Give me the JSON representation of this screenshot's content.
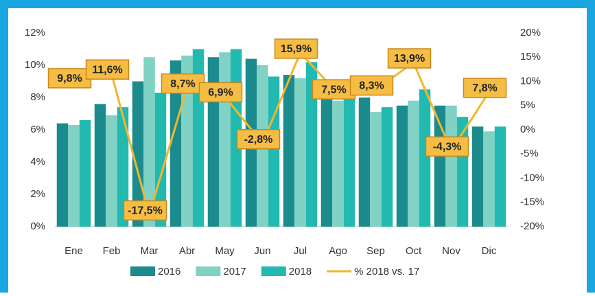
{
  "chart_data": {
    "type": "bar",
    "categories": [
      "Ene",
      "Feb",
      "Mar",
      "Abr",
      "May",
      "Jun",
      "Jul",
      "Ago",
      "Sep",
      "Oct",
      "Nov",
      "Dic"
    ],
    "series": [
      {
        "name": "2016",
        "color": "#1b8b8e",
        "values": [
          6.4,
          7.6,
          9.0,
          10.3,
          10.5,
          10.4,
          9.4,
          7.9,
          8.0,
          7.5,
          7.5,
          6.2
        ]
      },
      {
        "name": "2017",
        "color": "#80d2c5",
        "values": [
          6.3,
          6.9,
          10.5,
          10.6,
          10.8,
          10.0,
          9.2,
          7.8,
          7.1,
          7.8,
          7.5,
          5.9
        ]
      },
      {
        "name": "2018",
        "color": "#22b9b0",
        "values": [
          6.6,
          7.4,
          8.3,
          11.0,
          11.0,
          9.3,
          10.2,
          8.0,
          7.4,
          8.5,
          6.8,
          6.2
        ]
      },
      {
        "name": "% 2018 vs. 17",
        "color": "#f3b62b",
        "type": "line",
        "axis": "y2",
        "values": [
          9.8,
          11.6,
          -17.5,
          8.7,
          6.9,
          -2.8,
          15.9,
          7.5,
          8.3,
          13.9,
          -4.3,
          7.8
        ],
        "value_labels": [
          "9,8%",
          "11,6%",
          "-17,5%",
          "8,7%",
          "6,9%",
          "-2,8%",
          "15,9%",
          "7,5%",
          "8,3%",
          "13,9%",
          "-4,3%",
          "7,8%"
        ]
      }
    ],
    "ylim": [
      0,
      12
    ],
    "yticks": [
      {
        "value": 0,
        "label": "0%"
      },
      {
        "value": 2,
        "label": "2%"
      },
      {
        "value": 4,
        "label": "4%"
      },
      {
        "value": 6,
        "label": "6%"
      },
      {
        "value": 8,
        "label": "8%"
      },
      {
        "value": 10,
        "label": "10%"
      },
      {
        "value": 12,
        "label": "12%"
      }
    ],
    "y2lim": [
      -20,
      20
    ],
    "y2ticks": [
      {
        "value": -20,
        "label": "-20%"
      },
      {
        "value": -15,
        "label": "-15%"
      },
      {
        "value": -10,
        "label": "-10%"
      },
      {
        "value": -5,
        "label": "-5%"
      },
      {
        "value": 0,
        "label": "0%"
      },
      {
        "value": 5,
        "label": "5%"
      },
      {
        "value": 10,
        "label": "10%"
      },
      {
        "value": 15,
        "label": "15%"
      },
      {
        "value": 20,
        "label": "20%"
      }
    ],
    "grid": false,
    "legend": "bottom"
  }
}
